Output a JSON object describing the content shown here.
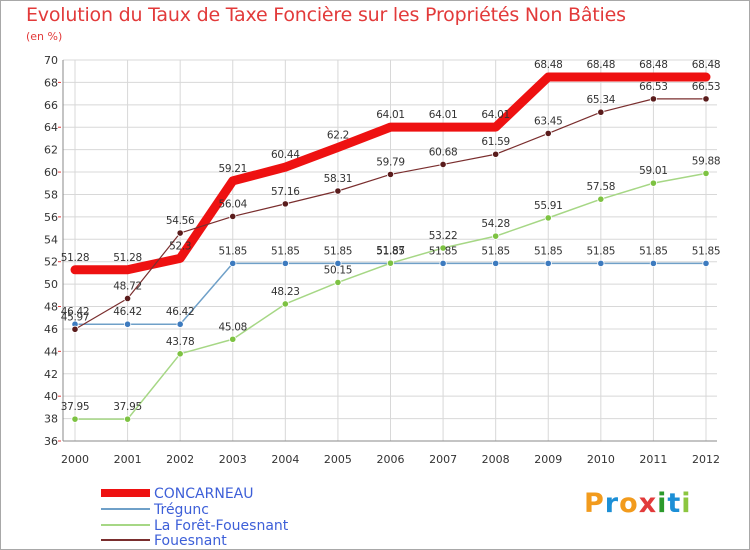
{
  "header": {
    "title": "Evolution du Taux de Taxe Foncière sur les Propriétés Non Bâties",
    "unit": "(en %)"
  },
  "logo": {
    "text": "Proxiti",
    "letters": [
      "P",
      "r",
      "o",
      "x",
      "i",
      "t",
      "i"
    ],
    "colors": [
      "#f29b1d",
      "#1c8fd6",
      "#f29b1d",
      "#e23a3a",
      "#2c9a2c",
      "#1c8fd6",
      "#8cc63f"
    ]
  },
  "chart_data": {
    "type": "line",
    "title": "Evolution du Taux de Taxe Foncière sur les Propriétés Non Bâties",
    "ylabel": "(en %)",
    "x": [
      "2000",
      "2001",
      "2002",
      "2003",
      "2004",
      "2005",
      "2006",
      "2007",
      "2008",
      "2009",
      "2010",
      "2011",
      "2012"
    ],
    "ylim": [
      36,
      70
    ],
    "yticks": [
      36,
      38,
      40,
      42,
      44,
      46,
      48,
      50,
      52,
      54,
      56,
      58,
      60,
      62,
      64,
      66,
      68,
      70
    ],
    "grid": true,
    "legend_position": "bottom-left",
    "series": [
      {
        "name": "CONCARNEAU",
        "color": "#ee1111",
        "labels": [
          "51.28",
          "51.28",
          "52.3",
          "59.21",
          "60.44",
          "62.2",
          "64.01",
          "64.01",
          "64.01",
          "68.48",
          "68.48",
          "68.48",
          "68.48"
        ],
        "values": [
          51.28,
          51.28,
          52.3,
          59.21,
          60.44,
          62.2,
          64.01,
          64.01,
          64.01,
          68.48,
          68.48,
          68.48,
          68.48
        ]
      },
      {
        "name": "Trégunc",
        "color": "#6fa0c8",
        "labels": [
          "46.42",
          "46.42",
          "46.42",
          "51.85",
          "51.85",
          "51.85",
          "51.85",
          "51.85",
          "51.85",
          "51.85",
          "51.85",
          "51.85",
          "51.85"
        ],
        "values": [
          46.42,
          46.42,
          46.42,
          51.85,
          51.85,
          51.85,
          51.85,
          51.85,
          51.85,
          51.85,
          51.85,
          51.85,
          51.85
        ]
      },
      {
        "name": "La Forêt-Fouesnant",
        "color": "#a6d785",
        "labels": [
          "37.95",
          "37.95",
          "43.78",
          "45.08",
          "48.23",
          "50.15",
          "51.87",
          "53.22",
          "54.28",
          "55.91",
          "57.58",
          "59.01",
          "59.88"
        ],
        "values": [
          37.95,
          37.95,
          43.78,
          45.08,
          48.23,
          50.15,
          51.87,
          53.22,
          54.28,
          55.91,
          57.58,
          59.01,
          59.88
        ]
      },
      {
        "name": "Fouesnant",
        "color": "#7a2e2e",
        "labels": [
          "45.97",
          "48.72",
          "54.56",
          "56.04",
          "57.16",
          "58.31",
          "59.79",
          "60.68",
          "61.59",
          "63.45",
          "65.34",
          "66.53",
          "66.53"
        ],
        "values": [
          45.97,
          48.72,
          54.56,
          56.04,
          57.16,
          58.31,
          59.79,
          60.68,
          61.59,
          63.45,
          65.34,
          66.53,
          66.53
        ]
      }
    ]
  }
}
